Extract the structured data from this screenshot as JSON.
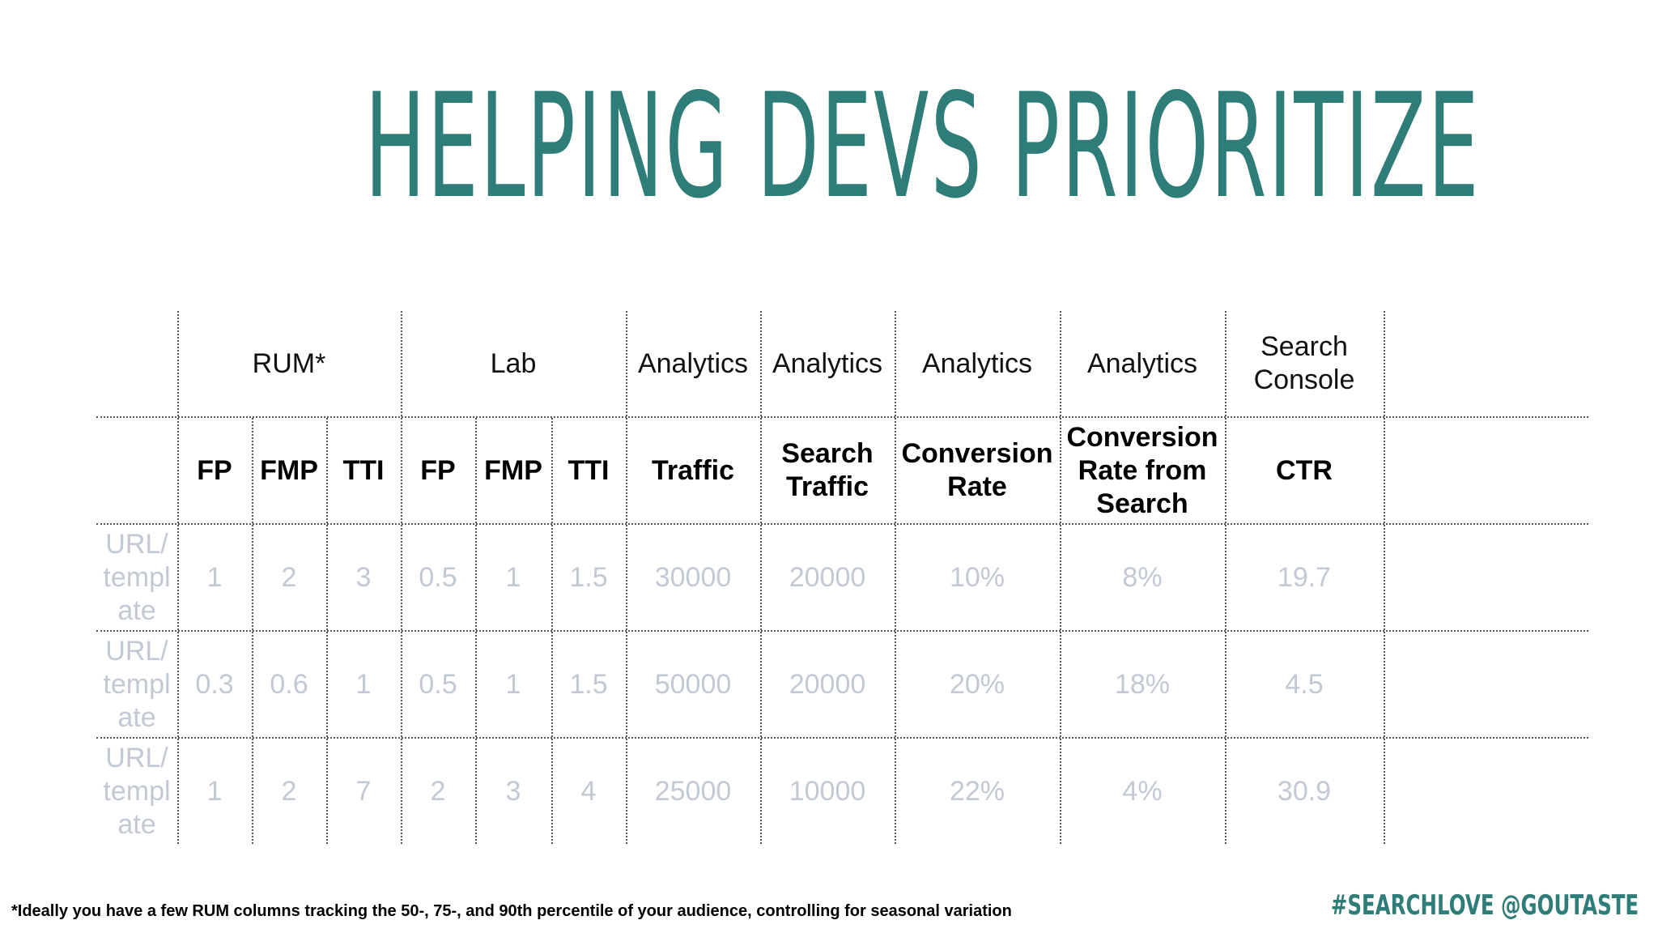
{
  "title": "HELPING DEVS PRIORITIZE",
  "table": {
    "groups": [
      {
        "label": "RUM*"
      },
      {
        "label": "Lab"
      },
      {
        "label": "Analytics"
      },
      {
        "label": "Analytics"
      },
      {
        "label": "Analytics"
      },
      {
        "label": "Analytics"
      },
      {
        "label": "Search Console"
      }
    ],
    "metrics": [
      "FP",
      "FMP",
      "TTI",
      "FP",
      "FMP",
      "TTI",
      "Traffic",
      "Search Traffic",
      "Conversion Rate",
      "Conversion Rate from Search",
      "CTR"
    ],
    "rows": [
      {
        "label": "URL/ templ ate",
        "values": [
          "1",
          "2",
          "3",
          "0.5",
          "1",
          "1.5",
          "30000",
          "20000",
          "10%",
          "8%",
          "19.7"
        ]
      },
      {
        "label": "URL/ templ ate",
        "values": [
          "0.3",
          "0.6",
          "1",
          "0.5",
          "1",
          "1.5",
          "50000",
          "20000",
          "20%",
          "18%",
          "4.5"
        ]
      },
      {
        "label": "URL/ templ ate",
        "values": [
          "1",
          "2",
          "7",
          "2",
          "3",
          "4",
          "25000",
          "10000",
          "22%",
          "4%",
          "30.9"
        ]
      }
    ]
  },
  "footnote": "*Ideally you have a few RUM columns tracking the 50-, 75-, and 90th percentile of your audience, controlling for seasonal variation",
  "hashtag": "#SEARCHLOVE @GOUTASTE",
  "colors": {
    "title": "#2e7d78",
    "data_text": "#c3c9d4",
    "grid": "#555555"
  }
}
